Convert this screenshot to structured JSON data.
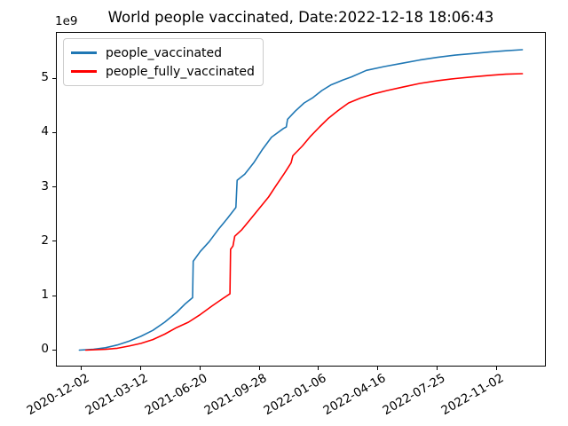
{
  "figure": {
    "kind": "matplotlib-line-chart",
    "background": "#ffffff"
  },
  "chart_data": {
    "type": "line",
    "title": "World people vaccinated, Date:2022-12-18 18:06:43",
    "xlabel": "",
    "ylabel": "",
    "grid": false,
    "legend_position": "upper-left",
    "x_axis": {
      "epoch": "2020-12-02",
      "unit": "days since 2020-12-02",
      "lim": [
        -42,
        781
      ],
      "tick_days": [
        0,
        100,
        200,
        300,
        400,
        500,
        600,
        700
      ],
      "tick_labels": [
        "2020-12-02",
        "2021-03-12",
        "2021-06-20",
        "2021-09-28",
        "2022-01-06",
        "2022-04-16",
        "2022-07-25",
        "2022-11-02"
      ],
      "tick_rotation_deg": 30
    },
    "y_axis": {
      "lim": [
        -0.28,
        5.84
      ],
      "ticks": [
        0,
        1,
        2,
        3,
        4,
        5
      ],
      "offset_text": "1e9",
      "unit_multiplier": "1e9"
    },
    "series": [
      {
        "name": "people_vaccinated",
        "color": "#1f77b4",
        "points": [
          [
            -4,
            0.005
          ],
          [
            20,
            0.02
          ],
          [
            40,
            0.05
          ],
          [
            60,
            0.1
          ],
          [
            80,
            0.17
          ],
          [
            100,
            0.26
          ],
          [
            120,
            0.37
          ],
          [
            140,
            0.52
          ],
          [
            160,
            0.7
          ],
          [
            175,
            0.86
          ],
          [
            187,
            0.97
          ],
          [
            188,
            1.64
          ],
          [
            200,
            1.82
          ],
          [
            215,
            2.0
          ],
          [
            230,
            2.22
          ],
          [
            245,
            2.42
          ],
          [
            260,
            2.63
          ],
          [
            262,
            3.13
          ],
          [
            275,
            3.24
          ],
          [
            290,
            3.45
          ],
          [
            305,
            3.7
          ],
          [
            320,
            3.92
          ],
          [
            340,
            4.08
          ],
          [
            345,
            4.11
          ],
          [
            347,
            4.25
          ],
          [
            360,
            4.4
          ],
          [
            375,
            4.55
          ],
          [
            390,
            4.65
          ],
          [
            405,
            4.78
          ],
          [
            420,
            4.88
          ],
          [
            440,
            4.97
          ],
          [
            455,
            5.03
          ],
          [
            480,
            5.15
          ],
          [
            510,
            5.22
          ],
          [
            540,
            5.28
          ],
          [
            570,
            5.34
          ],
          [
            600,
            5.39
          ],
          [
            630,
            5.43
          ],
          [
            660,
            5.46
          ],
          [
            690,
            5.49
          ],
          [
            715,
            5.51
          ],
          [
            743,
            5.53
          ]
        ]
      },
      {
        "name": "people_fully_vaccinated",
        "color": "#ff0000",
        "points": [
          [
            7,
            0.005
          ],
          [
            40,
            0.02
          ],
          [
            60,
            0.04
          ],
          [
            80,
            0.08
          ],
          [
            100,
            0.13
          ],
          [
            120,
            0.2
          ],
          [
            140,
            0.3
          ],
          [
            160,
            0.42
          ],
          [
            180,
            0.52
          ],
          [
            200,
            0.66
          ],
          [
            220,
            0.82
          ],
          [
            240,
            0.97
          ],
          [
            250,
            1.04
          ],
          [
            251,
            1.86
          ],
          [
            255,
            1.92
          ],
          [
            258,
            2.1
          ],
          [
            270,
            2.22
          ],
          [
            285,
            2.42
          ],
          [
            300,
            2.62
          ],
          [
            315,
            2.82
          ],
          [
            327,
            3.02
          ],
          [
            342,
            3.26
          ],
          [
            353,
            3.45
          ],
          [
            356,
            3.58
          ],
          [
            372,
            3.76
          ],
          [
            386,
            3.94
          ],
          [
            401,
            4.11
          ],
          [
            416,
            4.27
          ],
          [
            431,
            4.4
          ],
          [
            450,
            4.55
          ],
          [
            470,
            4.64
          ],
          [
            490,
            4.71
          ],
          [
            515,
            4.78
          ],
          [
            540,
            4.84
          ],
          [
            570,
            4.91
          ],
          [
            600,
            4.96
          ],
          [
            630,
            5.0
          ],
          [
            660,
            5.03
          ],
          [
            690,
            5.06
          ],
          [
            715,
            5.08
          ],
          [
            743,
            5.09
          ]
        ]
      }
    ]
  }
}
